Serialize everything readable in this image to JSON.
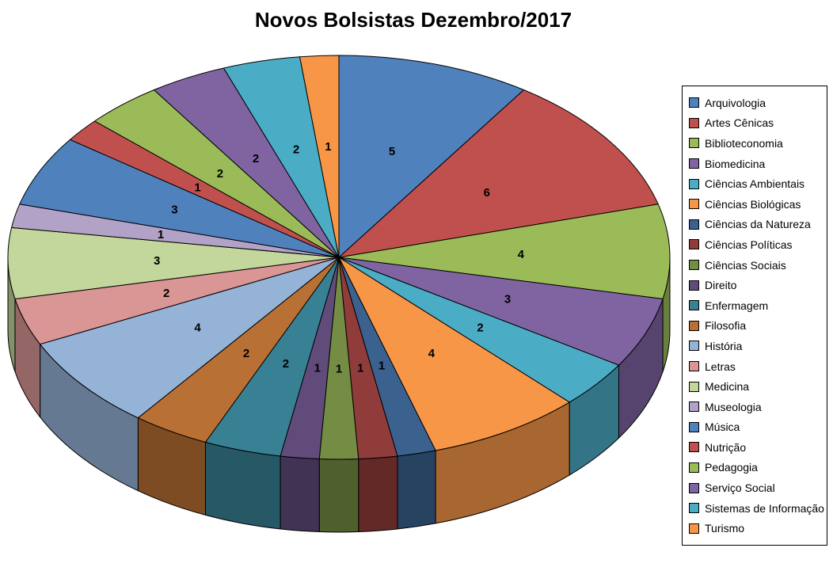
{
  "page": {
    "background": "#FFFFFF"
  },
  "chart_data": {
    "type": "pie",
    "style": "3d",
    "title": "Novos Bolsistas Dezembro/2017",
    "legend_position": "right",
    "data_labels": "values",
    "label_color": "#000000",
    "start_angle_deg": 0,
    "direction": "clockwise",
    "total": 53,
    "categories": [
      "Arquivologia",
      "Artes Cênicas",
      "Biblioteconomia",
      "Biomedicina",
      "Ciências Ambientais",
      "Ciências Biológicas",
      "Ciências da Natureza",
      "Ciências Políticas",
      "Ciências Sociais",
      "Direito",
      "Enfermagem",
      "Filosofia",
      "História",
      "Letras",
      "Medicina",
      "Museologia",
      "Música",
      "Nutrição",
      "Pedagogia",
      "Serviço Social",
      "Sistemas de Informação",
      "Turismo"
    ],
    "values": [
      5,
      6,
      4,
      3,
      2,
      4,
      1,
      1,
      1,
      1,
      2,
      2,
      4,
      2,
      3,
      1,
      3,
      1,
      2,
      2,
      2,
      1
    ],
    "colors": [
      "#4F81BD",
      "#C0504D",
      "#9BBB59",
      "#8064A2",
      "#4BACC6",
      "#F79646",
      "#3B618E",
      "#903C3A",
      "#748C43",
      "#604B7A",
      "#388194",
      "#B97034",
      "#95B3D7",
      "#D99694",
      "#C3D69B",
      "#B3A2C7",
      "#4F81BD",
      "#C0504D",
      "#9BBB59",
      "#8064A2",
      "#4BACC6",
      "#F79646"
    ]
  }
}
